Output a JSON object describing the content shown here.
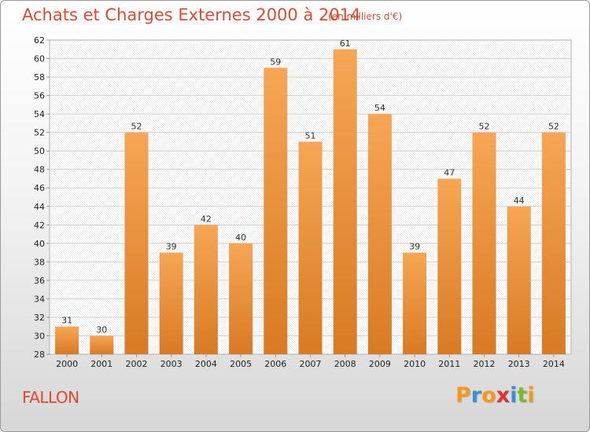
{
  "header": {
    "title": "Achats et Charges Externes 2000 à 2014",
    "subtitle": "(en milliers d'€)"
  },
  "footer": {
    "location": "FALLON",
    "logo": {
      "letters": [
        "P",
        "r",
        "o",
        "x",
        "i",
        "t",
        "i"
      ],
      "colors": [
        "#f29a1e",
        "#3a8fd1",
        "#f29a1e",
        "#e03030",
        "#3a8fd1",
        "#7ab82e",
        "#f29a1e"
      ]
    }
  },
  "colors": {
    "bar_top": "#f6a655",
    "bar_bottom": "#d97a24",
    "accent": "#e04a2e"
  },
  "chart_data": {
    "type": "bar",
    "categories": [
      "2000",
      "2001",
      "2002",
      "2003",
      "2004",
      "2005",
      "2006",
      "2007",
      "2008",
      "2009",
      "2010",
      "2011",
      "2012",
      "2013",
      "2014"
    ],
    "values": [
      31,
      30,
      52,
      39,
      42,
      40,
      59,
      51,
      61,
      54,
      39,
      47,
      52,
      44,
      52
    ],
    "data_labels": [
      "31",
      "30",
      "52",
      "39",
      "42",
      "40",
      "59",
      "51",
      "61",
      "54",
      "39",
      "47",
      "52",
      "44",
      "52"
    ],
    "yticks": [
      "28",
      "30",
      "32",
      "34",
      "36",
      "38",
      "40",
      "42",
      "44",
      "46",
      "48",
      "50",
      "52",
      "54",
      "56",
      "58",
      "60",
      "62"
    ],
    "title": "Achats et Charges Externes 2000 à 2014",
    "xlabel": "",
    "ylabel": "",
    "ylim": [
      28,
      62
    ],
    "grid": true,
    "legend": "none"
  }
}
